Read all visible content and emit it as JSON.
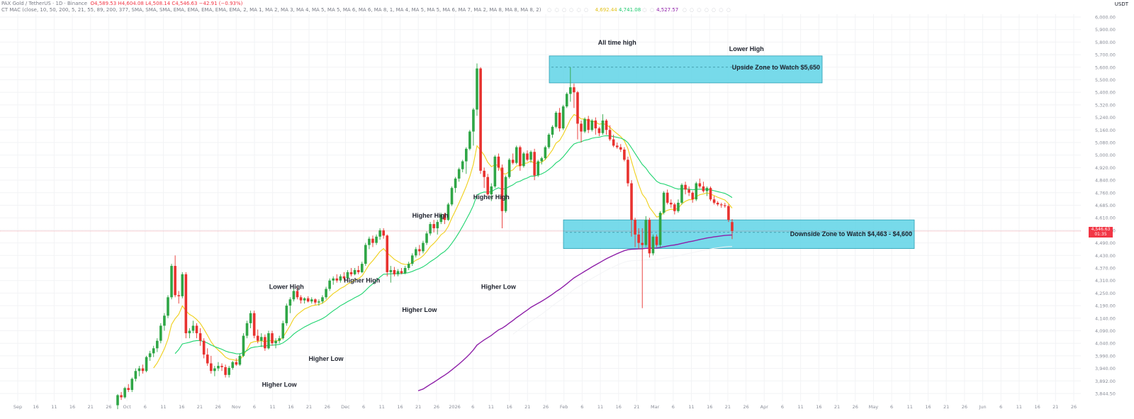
{
  "header": {
    "symbol_line": "PAX Gold / TetherUS · 1D · Binance",
    "ohlc": "O4,589.53  H4,604.08  L4,508.14  C4,546.63  −42.91 (−0.93%)",
    "indicator_line": "CT MAC (close, 10, 50, 200, 5, 21, 55, 89, 200, 377, SMA, SMA, SMA, EMA, EMA, EMA, EMA, EMA, 2, MA 1, MA 2, MA 3, MA 4, MA 5, MA 5, MA 6, MA 6, MA 8, 1, MA 4, MA 5, MA 5, MA 6, MA 7, MA 2, MA 8, MA 8, MA 8, 2)",
    "ma_values": [
      "4,692.44",
      "4,741.08",
      "4,527.57"
    ],
    "currency": "USDT"
  },
  "price_tag": {
    "price": "4,546.63",
    "countdown": "01:35"
  },
  "chart_data": {
    "type": "candlestick",
    "y_ticks": [
      3844.5,
      3892,
      3940,
      3990,
      4040,
      4090,
      4140,
      4190,
      4250,
      4310,
      4370,
      4430,
      4490,
      4550,
      4610,
      4685,
      4760,
      4840,
      4920,
      5000,
      5080,
      5160,
      5240,
      5320,
      5400,
      5500,
      5600,
      5700,
      5800,
      5900,
      6000
    ],
    "y_tick_labels": [
      "3,844.50",
      "3,892.00",
      "3,940.00",
      "3,990.00",
      "4,040.00",
      "4,090.00",
      "4,140.00",
      "4,190.00",
      "4,250.00",
      "4,310.00",
      "4,370.00",
      "4,430.00",
      "4,490.00",
      "4,550.00",
      "4,610.00",
      "4,685.00",
      "4,760.00",
      "4,840.00",
      "4,920.00",
      "5,000.00",
      "5,080.00",
      "5,160.00",
      "5,240.00",
      "5,320.00",
      "5,400.00",
      "5,500.00",
      "5,600.00",
      "5,700.00",
      "5,800.00",
      "5,900.00",
      "6,000.00"
    ],
    "x_tick_labels": [
      "Sep",
      "16",
      "11",
      "16",
      "21",
      "26",
      "Oct",
      "6",
      "11",
      "16",
      "21",
      "26",
      "Nov",
      "6",
      "11",
      "16",
      "21",
      "26",
      "Dec",
      "6",
      "11",
      "16",
      "21",
      "26",
      "2026",
      "6",
      "11",
      "16",
      "21",
      "26",
      "Feb",
      "6",
      "11",
      "16",
      "21",
      "Mar",
      "6",
      "11",
      "16",
      "21",
      "26",
      "Apr",
      "6",
      "11",
      "16",
      "21",
      "26",
      "May",
      "6",
      "11",
      "16",
      "21",
      "26",
      "Jun",
      "6",
      "11",
      "16",
      "21",
      "26"
    ],
    "candles": [
      [
        3800,
        3842,
        3785,
        3838
      ],
      [
        3838,
        3850,
        3820,
        3830
      ],
      [
        3830,
        3870,
        3825,
        3865
      ],
      [
        3865,
        3880,
        3850,
        3858
      ],
      [
        3858,
        3905,
        3850,
        3900
      ],
      [
        3900,
        3940,
        3890,
        3930
      ],
      [
        3930,
        3950,
        3910,
        3940
      ],
      [
        3940,
        3955,
        3920,
        3930
      ],
      [
        3930,
        3990,
        3925,
        3985
      ],
      [
        3985,
        4010,
        3970,
        4000
      ],
      [
        4000,
        4030,
        3985,
        4020
      ],
      [
        4020,
        4060,
        4005,
        4050
      ],
      [
        4050,
        4120,
        4040,
        4110
      ],
      [
        4110,
        4160,
        4090,
        4150
      ],
      [
        4150,
        4240,
        4140,
        4230
      ],
      [
        4230,
        4390,
        4220,
        4380
      ],
      [
        4380,
        4430,
        4230,
        4240
      ],
      [
        4240,
        4260,
        4200,
        4235
      ],
      [
        4235,
        4350,
        4225,
        4340
      ],
      [
        4340,
        4350,
        4060,
        4080
      ],
      [
        4080,
        4100,
        4060,
        4090
      ],
      [
        4090,
        4130,
        4080,
        4110
      ],
      [
        4110,
        4120,
        4060,
        4080
      ],
      [
        4080,
        4100,
        4030,
        4050
      ],
      [
        4050,
        4060,
        3980,
        3995
      ],
      [
        3995,
        4020,
        3950,
        3960
      ],
      [
        3960,
        3990,
        3920,
        3930
      ],
      [
        3930,
        3950,
        3910,
        3940
      ],
      [
        3940,
        3965,
        3930,
        3950
      ],
      [
        3950,
        3960,
        3930,
        3945
      ],
      [
        3945,
        3955,
        3905,
        3915
      ],
      [
        3915,
        3950,
        3905,
        3942
      ],
      [
        3942,
        3970,
        3935,
        3965
      ],
      [
        3965,
        3980,
        3950,
        3955
      ],
      [
        3955,
        4000,
        3950,
        3990
      ],
      [
        3990,
        4080,
        3985,
        4070
      ],
      [
        4070,
        4130,
        4060,
        4120
      ],
      [
        4120,
        4170,
        4100,
        4160
      ],
      [
        4160,
        4170,
        4060,
        4070
      ],
      [
        4070,
        4095,
        4040,
        4050
      ],
      [
        4050,
        4080,
        4025,
        4065
      ],
      [
        4065,
        4075,
        4010,
        4020
      ],
      [
        4020,
        4090,
        4015,
        4080
      ],
      [
        4080,
        4090,
        4030,
        4040
      ],
      [
        4040,
        4060,
        4020,
        4050
      ],
      [
        4050,
        4070,
        4040,
        4060
      ],
      [
        4060,
        4130,
        4055,
        4120
      ],
      [
        4120,
        4200,
        4110,
        4190
      ],
      [
        4190,
        4230,
        4160,
        4220
      ],
      [
        4220,
        4270,
        4210,
        4260
      ],
      [
        4260,
        4280,
        4220,
        4230
      ],
      [
        4230,
        4240,
        4200,
        4215
      ],
      [
        4215,
        4230,
        4200,
        4225
      ],
      [
        4225,
        4235,
        4205,
        4210
      ],
      [
        4210,
        4230,
        4200,
        4220
      ],
      [
        4220,
        4225,
        4195,
        4205
      ],
      [
        4205,
        4220,
        4190,
        4210
      ],
      [
        4210,
        4240,
        4200,
        4230
      ],
      [
        4230,
        4280,
        4220,
        4270
      ],
      [
        4270,
        4320,
        4260,
        4310
      ],
      [
        4310,
        4330,
        4290,
        4320
      ],
      [
        4320,
        4340,
        4300,
        4310
      ],
      [
        4310,
        4340,
        4300,
        4330
      ],
      [
        4330,
        4350,
        4310,
        4320
      ],
      [
        4320,
        4360,
        4315,
        4350
      ],
      [
        4350,
        4370,
        4330,
        4340
      ],
      [
        4340,
        4370,
        4335,
        4360
      ],
      [
        4360,
        4380,
        4340,
        4350
      ],
      [
        4350,
        4400,
        4345,
        4390
      ],
      [
        4390,
        4490,
        4380,
        4480
      ],
      [
        4480,
        4520,
        4460,
        4510
      ],
      [
        4510,
        4525,
        4470,
        4490
      ],
      [
        4490,
        4530,
        4480,
        4520
      ],
      [
        4520,
        4560,
        4505,
        4550
      ],
      [
        4550,
        4560,
        4510,
        4525
      ],
      [
        4525,
        4530,
        4330,
        4350
      ],
      [
        4350,
        4380,
        4300,
        4360
      ],
      [
        4360,
        4375,
        4330,
        4340
      ],
      [
        4340,
        4365,
        4330,
        4355
      ],
      [
        4355,
        4370,
        4340,
        4345
      ],
      [
        4345,
        4380,
        4340,
        4370
      ],
      [
        4370,
        4400,
        4360,
        4390
      ],
      [
        4390,
        4440,
        4380,
        4430
      ],
      [
        4430,
        4470,
        4420,
        4460
      ],
      [
        4460,
        4480,
        4430,
        4450
      ],
      [
        4450,
        4500,
        4440,
        4490
      ],
      [
        4490,
        4545,
        4480,
        4535
      ],
      [
        4535,
        4590,
        4525,
        4580
      ],
      [
        4580,
        4600,
        4540,
        4560
      ],
      [
        4560,
        4600,
        4530,
        4590
      ],
      [
        4590,
        4640,
        4580,
        4630
      ],
      [
        4630,
        4640,
        4580,
        4600
      ],
      [
        4600,
        4700,
        4595,
        4690
      ],
      [
        4690,
        4800,
        4680,
        4790
      ],
      [
        4790,
        4860,
        4760,
        4850
      ],
      [
        4850,
        4920,
        4830,
        4910
      ],
      [
        4910,
        4970,
        4890,
        4960
      ],
      [
        4960,
        5050,
        4880,
        5040
      ],
      [
        5040,
        5160,
        5030,
        5150
      ],
      [
        5150,
        5300,
        5060,
        5290
      ],
      [
        5290,
        5630,
        5250,
        5590
      ],
      [
        5590,
        5600,
        4880,
        4900
      ],
      [
        4900,
        4920,
        4790,
        4860
      ],
      [
        4860,
        4880,
        4740,
        4750
      ],
      [
        4750,
        4820,
        4710,
        4800
      ],
      [
        4800,
        5000,
        4790,
        4990
      ],
      [
        4990,
        5010,
        4900,
        4920
      ],
      [
        4920,
        4940,
        4560,
        4650
      ],
      [
        4650,
        4870,
        4640,
        4860
      ],
      [
        4860,
        4980,
        4850,
        4970
      ],
      [
        4970,
        5010,
        4940,
        4950
      ],
      [
        4950,
        5060,
        4940,
        5050
      ],
      [
        5050,
        5060,
        4900,
        4930
      ],
      [
        4930,
        5020,
        4920,
        5010
      ],
      [
        5010,
        5030,
        4960,
        4970
      ],
      [
        4970,
        5030,
        4950,
        5020
      ],
      [
        5020,
        5040,
        4840,
        4870
      ],
      [
        4870,
        4970,
        4860,
        4960
      ],
      [
        4960,
        4990,
        4940,
        4980
      ],
      [
        4980,
        5060,
        4970,
        5050
      ],
      [
        5050,
        5140,
        5040,
        5130
      ],
      [
        5130,
        5190,
        5110,
        5180
      ],
      [
        5180,
        5280,
        5170,
        5270
      ],
      [
        5270,
        5300,
        5150,
        5170
      ],
      [
        5170,
        5320,
        5160,
        5310
      ],
      [
        5310,
        5400,
        5300,
        5390
      ],
      [
        5390,
        5600,
        5340,
        5440
      ],
      [
        5440,
        5470,
        5300,
        5400
      ],
      [
        5400,
        5410,
        5100,
        5200
      ],
      [
        5200,
        5220,
        5080,
        5150
      ],
      [
        5150,
        5240,
        5140,
        5230
      ],
      [
        5230,
        5250,
        5140,
        5160
      ],
      [
        5160,
        5230,
        5150,
        5220
      ],
      [
        5220,
        5240,
        5130,
        5170
      ],
      [
        5170,
        5180,
        5120,
        5140
      ],
      [
        5140,
        5260,
        5130,
        5220
      ],
      [
        5220,
        5230,
        5130,
        5160
      ],
      [
        5160,
        5190,
        5090,
        5100
      ],
      [
        5100,
        5130,
        5050,
        5060
      ],
      [
        5060,
        5080,
        5040,
        5050
      ],
      [
        5050,
        5070,
        5020,
        5035
      ],
      [
        5035,
        5050,
        4960,
        4970
      ],
      [
        4970,
        4990,
        4800,
        4820
      ],
      [
        4820,
        4840,
        4520,
        4600
      ],
      [
        4600,
        4610,
        4470,
        4530
      ],
      [
        4530,
        4560,
        4460,
        4490
      ],
      [
        4490,
        4560,
        4180,
        4480
      ],
      [
        4480,
        4620,
        4470,
        4600
      ],
      [
        4600,
        4610,
        4420,
        4440
      ],
      [
        4440,
        4530,
        4430,
        4520
      ],
      [
        4520,
        4530,
        4470,
        4480
      ],
      [
        4480,
        4650,
        4470,
        4640
      ],
      [
        4640,
        4770,
        4630,
        4760
      ],
      [
        4760,
        4780,
        4690,
        4700
      ],
      [
        4700,
        4720,
        4670,
        4690
      ],
      [
        4690,
        4700,
        4630,
        4650
      ],
      [
        4650,
        4720,
        4640,
        4700
      ],
      [
        4700,
        4820,
        4690,
        4810
      ],
      [
        4810,
        4830,
        4750,
        4780
      ],
      [
        4780,
        4800,
        4740,
        4760
      ],
      [
        4760,
        4770,
        4700,
        4720
      ],
      [
        4720,
        4830,
        4710,
        4820
      ],
      [
        4820,
        4850,
        4790,
        4800
      ],
      [
        4800,
        4830,
        4760,
        4770
      ],
      [
        4770,
        4800,
        4740,
        4790
      ],
      [
        4790,
        4800,
        4710,
        4720
      ],
      [
        4720,
        4740,
        4690,
        4700
      ],
      [
        4700,
        4710,
        4680,
        4690
      ],
      [
        4690,
        4700,
        4670,
        4685
      ],
      [
        4685,
        4700,
        4670,
        4680
      ],
      [
        4680,
        4690,
        4590,
        4600
      ],
      [
        4589.53,
        4604.08,
        4508.14,
        4546.63
      ]
    ],
    "zones": [
      {
        "label": "Upside Zone to Watch $5,650",
        "top": 5690,
        "bottom": 5475,
        "mid": 5600
      },
      {
        "label": "Downside Zone to Watch $4,463 - $4,600",
        "top": 4600,
        "bottom": 4463,
        "mid": 4540
      }
    ],
    "annotations": [
      {
        "label": "All time high",
        "x": 139,
        "y": 5780
      },
      {
        "label": "Lower High",
        "x": 175,
        "y": 5730
      },
      {
        "label": "Higher High",
        "x": 104,
        "y": 4720
      },
      {
        "label": "Higher High",
        "x": 87,
        "y": 4610
      },
      {
        "label": "Higher High",
        "x": 68,
        "y": 4300
      },
      {
        "label": "Lower High",
        "x": 47,
        "y": 4270
      },
      {
        "label": "Higher Low",
        "x": 106,
        "y": 4270
      },
      {
        "label": "Higher Low",
        "x": 84,
        "y": 4165
      },
      {
        "label": "Higher Low",
        "x": 58,
        "y": 3970
      },
      {
        "label": "Higher Low",
        "x": 45,
        "y": 3870
      }
    ],
    "ma_colors": [
      "#f0d01a",
      "#1ed46f",
      "#8e1fa8"
    ],
    "last_price": 4546.63
  }
}
